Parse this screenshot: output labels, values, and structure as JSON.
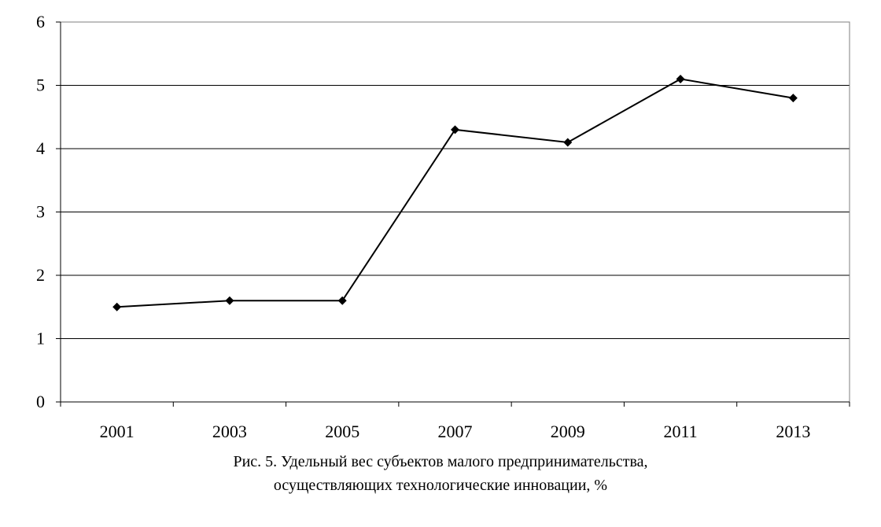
{
  "caption": {
    "line1": "Рис. 5. Удельный вес субъектов малого предпринимательства,",
    "line2": "осуществляющих технологические инновации, %"
  },
  "chart_data": {
    "type": "line",
    "title": "",
    "xlabel": "",
    "ylabel": "",
    "categories": [
      "2001",
      "2003",
      "2005",
      "2007",
      "2009",
      "2011",
      "2013"
    ],
    "series": [
      {
        "values": [
          1.5,
          1.6,
          1.6,
          4.3,
          4.1,
          5.1,
          4.8
        ]
      }
    ],
    "ylim": [
      0,
      6
    ],
    "yticks": [
      0,
      1,
      2,
      3,
      4,
      5,
      6
    ],
    "grid": "horizontal",
    "legend": "none",
    "marker": "diamond",
    "line_color": "#000000"
  }
}
